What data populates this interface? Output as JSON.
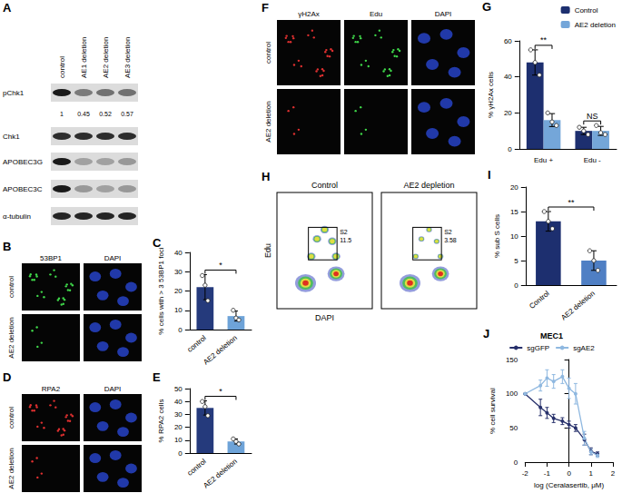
{
  "blot": {
    "panel": "A",
    "lanes": [
      "control",
      "AE1 deletion",
      "AE2 deletion",
      "AE3 deletion"
    ],
    "rows": [
      "pChk1",
      "Chk1",
      "APOBEC3G",
      "APOBEC3C",
      "α-tubulin"
    ],
    "quantification": [
      1,
      0.45,
      0.52,
      0.57
    ]
  },
  "micrographs": [
    {
      "panel": "B",
      "channels": [
        "53BP1",
        "DAPI"
      ],
      "conditions": [
        "control",
        "AE2 deletion"
      ]
    },
    {
      "panel": "D",
      "channels": [
        "RPA2",
        "DAPI"
      ],
      "conditions": [
        "control",
        "AE2 deletion"
      ]
    },
    {
      "panel": "F",
      "channels": [
        "γH2Ax",
        "Edu",
        "DAPI"
      ],
      "conditions": [
        "control",
        "AE2 deletion"
      ]
    }
  ],
  "flow": {
    "panel": "H",
    "xlabel": "DAPI",
    "ylabel": "Edu",
    "plots": [
      {
        "title": "Control",
        "gate": "S2",
        "percent": 11.5
      },
      {
        "title": "AE2 depletion",
        "gate": "S2",
        "percent": 3.58
      }
    ]
  },
  "chart_data": [
    {
      "panel": "C",
      "type": "bar",
      "categories": [
        "control",
        "AE2 deletion"
      ],
      "values": [
        22,
        7
      ],
      "errors": [
        6.5,
        2.6
      ],
      "points": [
        [
          28,
          23,
          15
        ],
        [
          10,
          6,
          5
        ]
      ],
      "colors": [
        "#253a7c",
        "#6ea3d8"
      ],
      "ylabel": "% cells with > 3 53BP1 foci",
      "ylim": [
        0,
        40
      ],
      "yticks": [
        0,
        10,
        20,
        30,
        40
      ],
      "grid": false,
      "annotations": [
        "*"
      ]
    },
    {
      "panel": "E",
      "type": "bar",
      "categories": [
        "control",
        "AE2 deletion"
      ],
      "values": [
        35,
        9
      ],
      "errors": [
        5.5,
        2
      ],
      "points": [
        [
          40,
          36,
          29
        ],
        [
          11,
          9,
          7
        ]
      ],
      "colors": [
        "#253a7c",
        "#6ea3d8"
      ],
      "ylabel": "% RPA2 cells",
      "ylim": [
        0,
        50
      ],
      "yticks": [
        0,
        10,
        20,
        30,
        40,
        50
      ],
      "grid": false,
      "annotations": [
        "*"
      ]
    },
    {
      "panel": "G",
      "type": "bar",
      "categories": [
        "Edu +",
        "Edu -"
      ],
      "series": [
        {
          "name": "Control",
          "color": "#1d2f6f",
          "values": [
            48,
            10
          ],
          "errors": [
            7,
            2
          ],
          "points": [
            [
              55,
              48,
              41
            ],
            [
              12,
              10,
              8
            ]
          ]
        },
        {
          "name": "AE2 deletion",
          "color": "#74a6d9",
          "values": [
            16,
            10
          ],
          "errors": [
            3.6,
            2.5
          ],
          "points": [
            [
              20,
              15,
              13
            ],
            [
              13,
              9,
              8
            ]
          ]
        }
      ],
      "ylabel": "% γH2Ax cells",
      "ylim": [
        0,
        60
      ],
      "yticks": [
        0,
        20,
        40,
        60
      ],
      "grid": false,
      "legend": "upper right",
      "annotations": [
        "**",
        "NS"
      ]
    },
    {
      "panel": "I",
      "type": "bar",
      "categories": [
        "Control",
        "AE2 deletion"
      ],
      "values": [
        13,
        5
      ],
      "errors": [
        2,
        2
      ],
      "points": [
        [
          15,
          13,
          11.5
        ],
        [
          7,
          5,
          3
        ]
      ],
      "colors": [
        "#1d2f6f",
        "#4f7fc4"
      ],
      "ylabel": "% sub S cells",
      "ylim": [
        0,
        20
      ],
      "yticks": [
        0,
        5,
        10,
        15,
        20
      ],
      "grid": false,
      "annotations": [
        "**"
      ]
    },
    {
      "panel": "J",
      "type": "line",
      "title": "MEC1",
      "x": [
        -2,
        -1.3,
        -1,
        -0.7,
        -0.3,
        0,
        0.3,
        0.7,
        1,
        1.3
      ],
      "series": [
        {
          "name": "sgGFP",
          "color": "#27306b",
          "marker": "circle",
          "values": [
            100,
            80,
            72,
            64,
            60,
            55,
            50,
            33,
            16,
            12
          ],
          "errors": [
            0,
            12,
            8,
            6,
            5,
            5,
            5,
            8,
            5,
            3
          ]
        },
        {
          "name": "sgAE2",
          "color": "#8fb8e0",
          "marker": "circle",
          "values": [
            100,
            112,
            123,
            118,
            125,
            108,
            100,
            35,
            15,
            10
          ],
          "errors": [
            0,
            8,
            12,
            10,
            10,
            15,
            15,
            10,
            4,
            3
          ]
        }
      ],
      "xlabel": "log (Ceralasertib, μM)",
      "ylabel": "% cell survival",
      "xlim": [
        -2,
        2
      ],
      "ylim": [
        0,
        150
      ],
      "xticks": [
        -2,
        -1,
        0,
        1,
        2
      ],
      "yticks": [
        0,
        50,
        100,
        150
      ],
      "grid": false,
      "legend": "top"
    }
  ]
}
